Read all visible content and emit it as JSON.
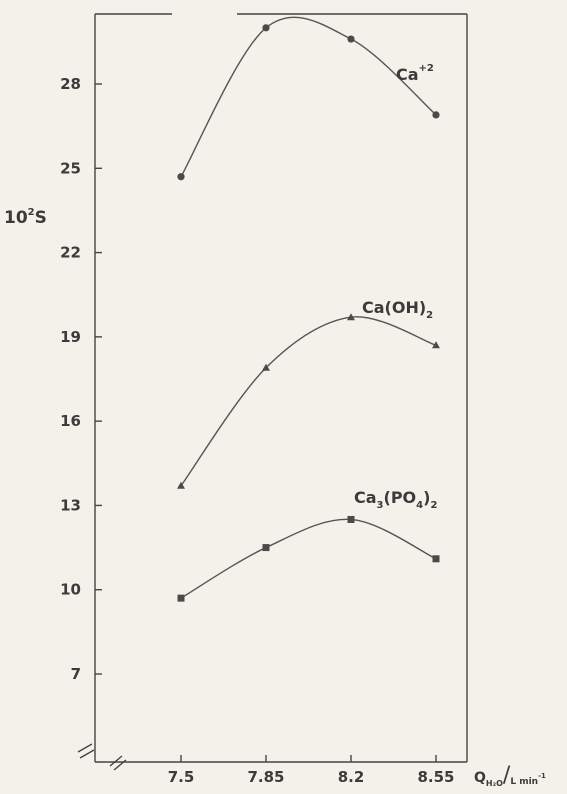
{
  "chart_data": {
    "type": "line",
    "ylabel": {
      "pre": "10",
      "sup": "2",
      "post": "S"
    },
    "xlabel": {
      "main": "Q",
      "sub": "H₂O",
      "sep": "/",
      "unit": "L min",
      "unit_sup": "-1"
    },
    "x_ticks": [
      "7.5",
      "7.85",
      "8.2",
      "8.55"
    ],
    "y_ticks": [
      "7",
      "10",
      "13",
      "16",
      "19",
      "22",
      "25",
      "28"
    ],
    "xlim": [
      7.2,
      8.75
    ],
    "ylim": [
      4,
      30.5
    ],
    "series": [
      {
        "name": "Ca",
        "name_sup": "+2",
        "name_sub": "",
        "name_post": "",
        "marker": "circle",
        "x": [
          7.5,
          7.85,
          8.2,
          8.55
        ],
        "y": [
          24.7,
          30.0,
          29.6,
          26.9
        ]
      },
      {
        "name": "Ca(OH)",
        "name_sup": "",
        "name_sub": "2",
        "name_post": "",
        "marker": "triangle",
        "x": [
          7.5,
          7.85,
          8.2,
          8.55
        ],
        "y": [
          13.7,
          17.9,
          19.7,
          18.7
        ]
      },
      {
        "name": "Ca",
        "name_sup": "",
        "name_sub": "3",
        "name_post": "(PO",
        "name_sub2": "4",
        "name_post2": ")",
        "name_sub3": "2",
        "marker": "square",
        "x": [
          7.5,
          7.85,
          8.2,
          8.55
        ],
        "y": [
          9.7,
          11.5,
          12.5,
          11.1
        ]
      }
    ],
    "colors": {
      "line": "#555555",
      "marker": "#4a4a4a",
      "text": "#3b3b3b"
    }
  }
}
